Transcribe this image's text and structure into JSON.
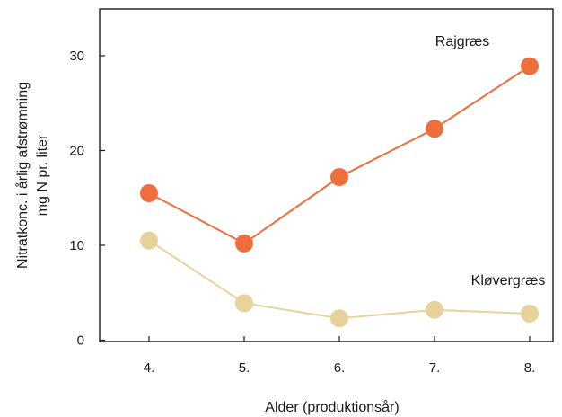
{
  "chart_data": {
    "type": "line",
    "xlabel": "Alder (produktionsår)",
    "ylabel_lines": [
      "Nitratkonc. i årlig afstrømning",
      "mg N pr. liter"
    ],
    "categories": [
      "4.",
      "5.",
      "6.",
      "7.",
      "8."
    ],
    "ylim": [
      0,
      34
    ],
    "yticks": [
      0,
      10,
      20,
      30
    ],
    "grid": false,
    "series": [
      {
        "name": "Rajgræs",
        "values": [
          15.5,
          10.2,
          17.2,
          22.3,
          28.9
        ],
        "color": "#ee6e3c"
      },
      {
        "name": "Kløvergræs",
        "values": [
          10.5,
          3.9,
          2.3,
          3.2,
          2.8
        ],
        "color": "#e6d29a"
      }
    ]
  }
}
